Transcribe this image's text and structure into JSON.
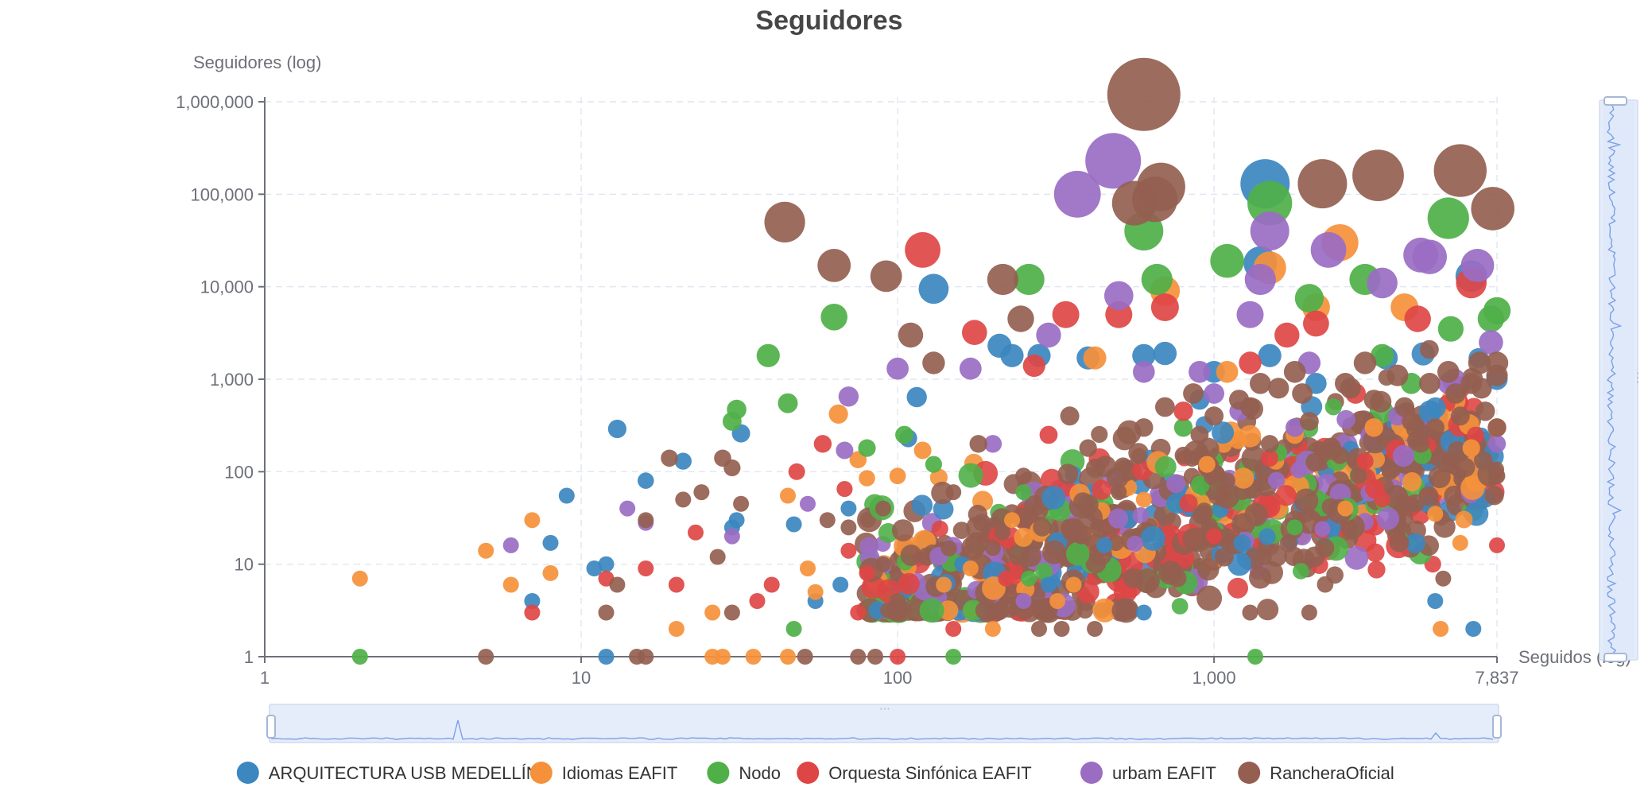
{
  "chart_data": {
    "type": "scatter",
    "title": "Seguidores",
    "xlabel": "Seguidos (log)",
    "ylabel": "Seguidores (log)",
    "x_scale": "log",
    "y_scale": "log",
    "xlim": [
      1,
      7837
    ],
    "ylim": [
      1,
      1000000
    ],
    "x_ticks": [
      "1",
      "10",
      "100",
      "1,000",
      "7,837"
    ],
    "y_ticks": [
      "1",
      "10",
      "100",
      "1,000",
      "10,000",
      "100,000",
      "1,000,000"
    ],
    "grid": true,
    "legend_position": "bottom",
    "series": [
      {
        "name": "ARQUITECTURA USB MEDELLÍN",
        "color": "#3c87c0",
        "points": [
          [
            9,
            55
          ],
          [
            13,
            290
          ],
          [
            8,
            17
          ],
          [
            7,
            4
          ],
          [
            11,
            9
          ],
          [
            12,
            10
          ],
          [
            12,
            1
          ],
          [
            16,
            80
          ],
          [
            21,
            130
          ],
          [
            32,
            260
          ],
          [
            31,
            30
          ],
          [
            30,
            25
          ],
          [
            47,
            27
          ],
          [
            55,
            4
          ],
          [
            66,
            6
          ],
          [
            70,
            40
          ],
          [
            108,
            230
          ],
          [
            115,
            640
          ],
          [
            130,
            9500
          ],
          [
            210,
            2300
          ],
          [
            230,
            1800
          ],
          [
            280,
            1800
          ],
          [
            400,
            1700
          ],
          [
            600,
            1800
          ],
          [
            700,
            1900
          ],
          [
            600,
            3
          ],
          [
            1000,
            1200
          ],
          [
            1400,
            18000
          ],
          [
            1450,
            130000
          ],
          [
            1500,
            1800
          ],
          [
            2100,
            900
          ],
          [
            3500,
            1700
          ],
          [
            6500,
            13000
          ],
          [
            6600,
            2
          ],
          [
            7837,
            1000
          ],
          [
            5000,
            4
          ],
          [
            160,
            10
          ],
          [
            300,
            6
          ],
          [
            450,
            16
          ],
          [
            900,
            600
          ]
        ]
      },
      {
        "name": "Idiomas EAFIT",
        "color": "#f5913b",
        "points": [
          [
            2,
            7
          ],
          [
            5,
            14
          ],
          [
            6,
            6
          ],
          [
            7,
            30
          ],
          [
            8,
            8
          ],
          [
            20,
            2
          ],
          [
            26,
            3
          ],
          [
            26,
            1
          ],
          [
            28,
            1
          ],
          [
            35,
            1
          ],
          [
            45,
            1
          ],
          [
            45,
            55
          ],
          [
            52,
            9
          ],
          [
            55,
            5
          ],
          [
            65,
            420
          ],
          [
            75,
            135
          ],
          [
            80,
            85
          ],
          [
            100,
            90
          ],
          [
            120,
            170
          ],
          [
            140,
            6
          ],
          [
            170,
            9
          ],
          [
            200,
            2
          ],
          [
            230,
            30
          ],
          [
            320,
            4
          ],
          [
            360,
            6
          ],
          [
            420,
            1700
          ],
          [
            600,
            50
          ],
          [
            700,
            9000
          ],
          [
            1100,
            1200
          ],
          [
            1500,
            16000
          ],
          [
            1800,
            250
          ],
          [
            2100,
            6000
          ],
          [
            2500,
            30000
          ],
          [
            2600,
            40
          ],
          [
            3200,
            300
          ],
          [
            5000,
            35
          ],
          [
            5200,
            2
          ],
          [
            6500,
            180
          ],
          [
            7837,
            300
          ],
          [
            4000,
            6000
          ],
          [
            6000,
            17
          ],
          [
            950,
            120
          ]
        ]
      },
      {
        "name": "Nodo",
        "color": "#4fb048",
        "points": [
          [
            2,
            1
          ],
          [
            30,
            350
          ],
          [
            31,
            470
          ],
          [
            39,
            1800
          ],
          [
            45,
            550
          ],
          [
            47,
            2
          ],
          [
            63,
            4700
          ],
          [
            80,
            180
          ],
          [
            105,
            250
          ],
          [
            130,
            120
          ],
          [
            150,
            1
          ],
          [
            260,
            12000
          ],
          [
            260,
            7
          ],
          [
            600,
            40000
          ],
          [
            660,
            12000
          ],
          [
            1100,
            19000
          ],
          [
            1350,
            1
          ],
          [
            1500,
            80000
          ],
          [
            1600,
            160
          ],
          [
            2000,
            7500
          ],
          [
            3000,
            12000
          ],
          [
            3400,
            1800
          ],
          [
            5500,
            55000
          ],
          [
            5600,
            3500
          ],
          [
            7500,
            4500
          ],
          [
            7837,
            5500
          ],
          [
            800,
            300
          ],
          [
            250,
            60
          ],
          [
            1800,
            25
          ],
          [
            4200,
            900
          ]
        ]
      },
      {
        "name": "Orquesta Sinfónica EAFIT",
        "color": "#de4645",
        "points": [
          [
            7,
            3
          ],
          [
            12,
            7
          ],
          [
            16,
            9
          ],
          [
            20,
            6
          ],
          [
            23,
            22
          ],
          [
            36,
            4
          ],
          [
            40,
            6
          ],
          [
            48,
            100
          ],
          [
            58,
            200
          ],
          [
            68,
            65
          ],
          [
            70,
            14
          ],
          [
            75,
            3
          ],
          [
            80,
            8
          ],
          [
            100,
            1
          ],
          [
            120,
            25000
          ],
          [
            150,
            2
          ],
          [
            175,
            3200
          ],
          [
            220,
            7
          ],
          [
            270,
            1400
          ],
          [
            340,
            5000
          ],
          [
            500,
            5000
          ],
          [
            700,
            6000
          ],
          [
            800,
            450
          ],
          [
            1000,
            20
          ],
          [
            1300,
            1500
          ],
          [
            1700,
            3000
          ],
          [
            2100,
            4000
          ],
          [
            2800,
            700
          ],
          [
            3400,
            50
          ],
          [
            4400,
            4500
          ],
          [
            6500,
            11000
          ],
          [
            7837,
            16
          ],
          [
            300,
            250
          ],
          [
            1500,
            140
          ],
          [
            3000,
            130
          ]
        ]
      },
      {
        "name": "urbam EAFIT",
        "color": "#9a6dc3",
        "points": [
          [
            6,
            16
          ],
          [
            14,
            40
          ],
          [
            16,
            28
          ],
          [
            30,
            20
          ],
          [
            52,
            45
          ],
          [
            68,
            170
          ],
          [
            70,
            650
          ],
          [
            100,
            1300
          ],
          [
            170,
            1300
          ],
          [
            250,
            4
          ],
          [
            300,
            3000
          ],
          [
            370,
            100000
          ],
          [
            480,
            230000
          ],
          [
            500,
            8000
          ],
          [
            600,
            1200
          ],
          [
            900,
            1200
          ],
          [
            1000,
            700
          ],
          [
            1200,
            450
          ],
          [
            1300,
            5000
          ],
          [
            1400,
            12000
          ],
          [
            1500,
            40000
          ],
          [
            2000,
            1500
          ],
          [
            2200,
            24
          ],
          [
            2300,
            25000
          ],
          [
            3400,
            11000
          ],
          [
            4500,
            22000
          ],
          [
            4800,
            21000
          ],
          [
            6800,
            17000
          ],
          [
            7837,
            200
          ],
          [
            7500,
            2500
          ],
          [
            200,
            200
          ],
          [
            1800,
            300
          ],
          [
            3800,
            400
          ],
          [
            5500,
            900
          ]
        ]
      },
      {
        "name": "RancheraOficial",
        "color": "#945f50",
        "points": [
          [
            5,
            1
          ],
          [
            12,
            3
          ],
          [
            13,
            6
          ],
          [
            15,
            1
          ],
          [
            16,
            1
          ],
          [
            16,
            30
          ],
          [
            19,
            140
          ],
          [
            21,
            50
          ],
          [
            24,
            60
          ],
          [
            28,
            140
          ],
          [
            27,
            12
          ],
          [
            30,
            110
          ],
          [
            30,
            3
          ],
          [
            32,
            45
          ],
          [
            44,
            50000
          ],
          [
            51,
            1
          ],
          [
            63,
            17000
          ],
          [
            70,
            25
          ],
          [
            75,
            1
          ],
          [
            85,
            1
          ],
          [
            90,
            10
          ],
          [
            92,
            13000
          ],
          [
            100,
            4
          ],
          [
            110,
            3000
          ],
          [
            130,
            1500
          ],
          [
            180,
            200
          ],
          [
            200,
            15
          ],
          [
            215,
            12000
          ],
          [
            245,
            4500
          ],
          [
            280,
            2
          ],
          [
            330,
            2
          ],
          [
            380,
            20
          ],
          [
            420,
            2
          ],
          [
            560,
            80000
          ],
          [
            600,
            1200000
          ],
          [
            650,
            88000
          ],
          [
            680,
            120000
          ],
          [
            700,
            500
          ],
          [
            720,
            8
          ],
          [
            860,
            700
          ],
          [
            1000,
            400
          ],
          [
            1200,
            600
          ],
          [
            1300,
            3
          ],
          [
            1400,
            900
          ],
          [
            1600,
            800
          ],
          [
            1800,
            1200
          ],
          [
            2000,
            3
          ],
          [
            2200,
            130000
          ],
          [
            2600,
            900
          ],
          [
            3000,
            1500
          ],
          [
            3300,
            160000
          ],
          [
            4000,
            500
          ],
          [
            5000,
            300
          ],
          [
            6000,
            180000
          ],
          [
            7000,
            800
          ],
          [
            7600,
            70000
          ],
          [
            7837,
            1500
          ],
          [
            7837,
            300
          ],
          [
            7837,
            90
          ],
          [
            5300,
            7
          ],
          [
            6000,
            400
          ],
          [
            4500,
            200
          ],
          [
            3600,
            100
          ],
          [
            2500,
            150
          ],
          [
            1500,
            200
          ],
          [
            800,
            150
          ],
          [
            400,
            180
          ],
          [
            250,
            90
          ],
          [
            150,
            60
          ],
          [
            90,
            40
          ],
          [
            60,
            30
          ],
          [
            500,
            60
          ],
          [
            1100,
            80
          ],
          [
            2000,
            350
          ],
          [
            3200,
            600
          ],
          [
            4200,
            350
          ],
          [
            5500,
            1200
          ],
          [
            6500,
            900
          ],
          [
            7200,
            450
          ],
          [
            7837,
            1100
          ],
          [
            350,
            400
          ],
          [
            600,
            300
          ],
          [
            900,
            250
          ],
          [
            1300,
            500
          ],
          [
            1900,
            700
          ],
          [
            2700,
            800
          ],
          [
            3800,
            1100
          ],
          [
            4800,
            900
          ],
          [
            5800,
            700
          ],
          [
            6900,
            1500
          ]
        ]
      }
    ]
  }
}
